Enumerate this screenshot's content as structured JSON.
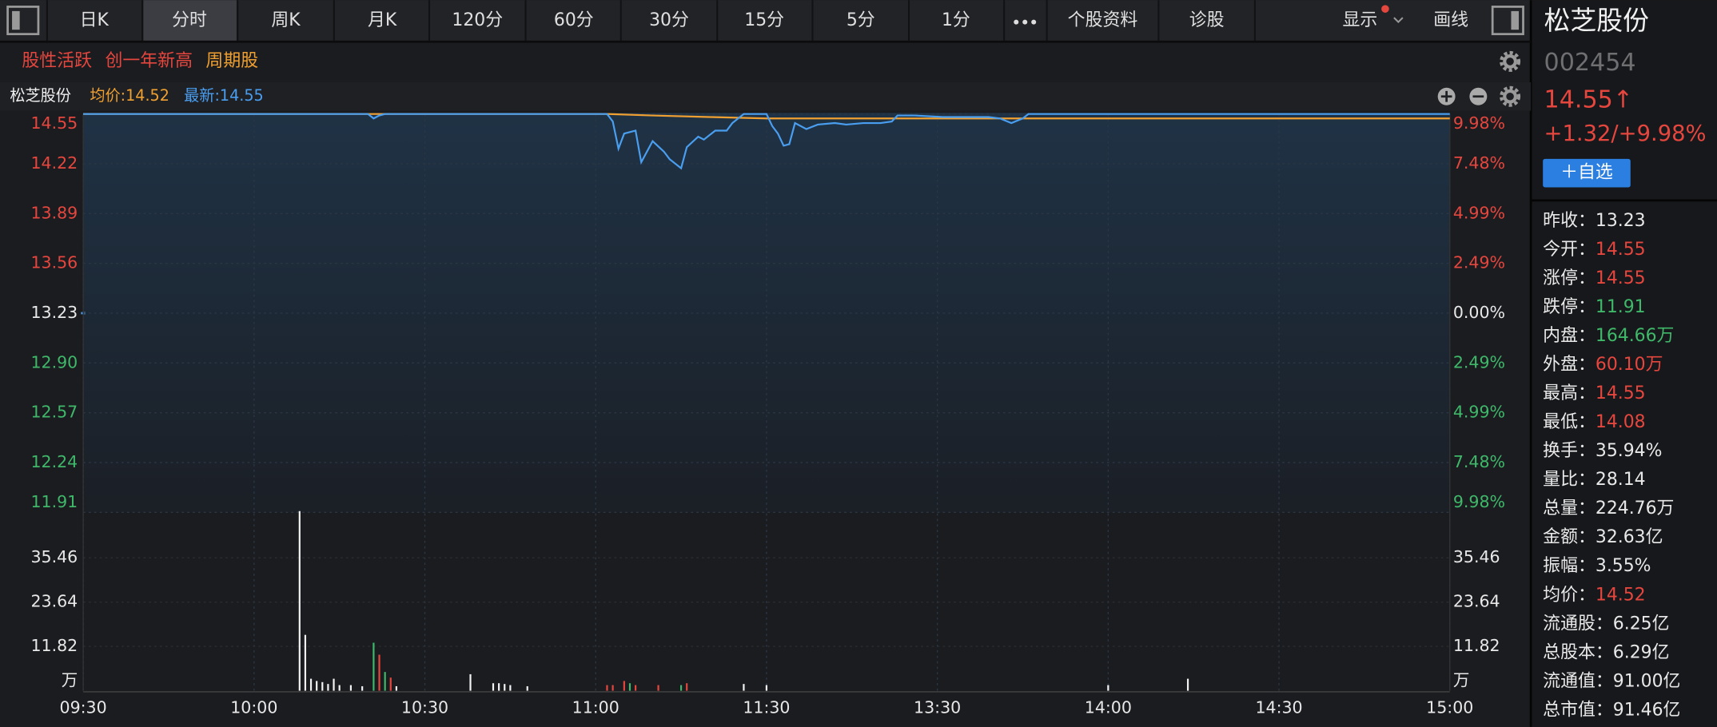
{
  "toolbar": {
    "tabs": [
      "日K",
      "分时",
      "周K",
      "月K",
      "120分",
      "60分",
      "30分",
      "15分",
      "5分",
      "1分",
      "个股资料",
      "诊股"
    ],
    "active": 1,
    "display": "显示",
    "draw": "画线"
  },
  "tags": [
    {
      "text": "股性活跃",
      "color": "#e5463e"
    },
    {
      "text": "创一年新高",
      "color": "#e5463e"
    },
    {
      "text": "周期股",
      "color": "#f0a030"
    }
  ],
  "chart": {
    "name": "松芝股份",
    "avg_label": "均价:14.52",
    "latest_label": "最新:14.55",
    "base": 13.23,
    "xlim": [
      0,
      240
    ],
    "xticks": [
      {
        "value": 0,
        "label": "09:30"
      },
      {
        "value": 30,
        "label": "10:00"
      },
      {
        "value": 60,
        "label": "10:30"
      },
      {
        "value": 90,
        "label": "11:00"
      },
      {
        "value": 120,
        "label": "11:30"
      },
      {
        "value": 150,
        "label": "13:30"
      },
      {
        "value": 180,
        "label": "14:00"
      },
      {
        "value": 210,
        "label": "14:30"
      },
      {
        "value": 240,
        "label": "15:00"
      }
    ],
    "ylim": [
      11.91,
      14.55
    ],
    "yticks": [
      {
        "value": 14.55,
        "label": "14.55"
      },
      {
        "value": 14.22,
        "label": "14.22"
      },
      {
        "value": 13.89,
        "label": "13.89"
      },
      {
        "value": 13.56,
        "label": "13.56"
      },
      {
        "value": 13.23,
        "label": "13.23"
      },
      {
        "value": 12.9,
        "label": "12.90"
      },
      {
        "value": 12.57,
        "label": "12.57"
      },
      {
        "value": 12.24,
        "label": "12.24"
      },
      {
        "value": 11.91,
        "label": "11.91"
      }
    ],
    "pct_ticks": [
      {
        "value": 14.55,
        "label": "9.98%"
      },
      {
        "value": 14.22,
        "label": "7.48%"
      },
      {
        "value": 13.89,
        "label": "4.99%"
      },
      {
        "value": 13.56,
        "label": "2.49%"
      },
      {
        "value": 13.23,
        "label": "0.00%"
      },
      {
        "value": 12.9,
        "label": "2.49%"
      },
      {
        "value": 12.57,
        "label": "4.99%"
      },
      {
        "value": 12.24,
        "label": "7.48%"
      },
      {
        "value": 11.91,
        "label": "9.98%"
      }
    ],
    "price": {
      "color": "#4a9ef0",
      "x": [
        0,
        50,
        51,
        52,
        53,
        92,
        93,
        94,
        95,
        97,
        98,
        100,
        102,
        103,
        105,
        106,
        108,
        109,
        111,
        113,
        114,
        116,
        120,
        121,
        122,
        123,
        124,
        125,
        127,
        129,
        132,
        134,
        137,
        140,
        142,
        143,
        146,
        151,
        159,
        161,
        163,
        165,
        166,
        240
      ],
      "values": [
        14.55,
        14.55,
        14.52,
        14.54,
        14.55,
        14.55,
        14.5,
        14.32,
        14.42,
        14.44,
        14.23,
        14.37,
        14.3,
        14.25,
        14.19,
        14.33,
        14.4,
        14.38,
        14.44,
        14.44,
        14.49,
        14.55,
        14.55,
        14.47,
        14.42,
        14.34,
        14.35,
        14.49,
        14.45,
        14.48,
        14.49,
        14.48,
        14.49,
        14.49,
        14.5,
        14.54,
        14.54,
        14.53,
        14.53,
        14.52,
        14.49,
        14.52,
        14.55,
        14.55
      ]
    },
    "avg": {
      "color": "#f0a030",
      "x": [
        0,
        92,
        100,
        110,
        120,
        240
      ],
      "values": [
        14.55,
        14.55,
        14.54,
        14.53,
        14.52,
        14.52
      ]
    },
    "vol_ylim": [
      0,
      47.28
    ],
    "vol_yticks": [
      11.82,
      23.64,
      35.46
    ],
    "vol_unit": "万",
    "volume": {
      "x": [
        38,
        39,
        40,
        41,
        42,
        43,
        44,
        45,
        47,
        49,
        51,
        52,
        53,
        54,
        55,
        68,
        72,
        73,
        74,
        75,
        78,
        92,
        93,
        95,
        96,
        97,
        101,
        105,
        106,
        116,
        120,
        180,
        194
      ],
      "values": [
        47.9,
        14.9,
        3.2,
        2.6,
        2.3,
        1.8,
        3.2,
        1.5,
        1.5,
        1.2,
        12.8,
        9.6,
        5,
        3.5,
        1.2,
        4.4,
        2,
        2,
        1.8,
        1.5,
        1.2,
        1.5,
        1.5,
        2.6,
        2,
        1.5,
        1.5,
        1.5,
        2,
        1.8,
        1.5,
        1.5,
        3.2
      ],
      "colors": [
        "#f2f2f2",
        "#f2f2f2",
        "#f2f2f2",
        "#f2f2f2",
        "#f2f2f2",
        "#f2f2f2",
        "#f2f2f2",
        "#f2f2f2",
        "#f2f2f2",
        "#f2f2f2",
        "#3fb86a",
        "#e5463e",
        "#3fb86a",
        "#e5463e",
        "#f2f2f2",
        "#f2f2f2",
        "#f2f2f2",
        "#f2f2f2",
        "#f2f2f2",
        "#f2f2f2",
        "#f2f2f2",
        "#e5463e",
        "#e5463e",
        "#e5463e",
        "#3fb86a",
        "#e5463e",
        "#e5463e",
        "#3fb86a",
        "#e5463e",
        "#f2f2f2",
        "#f2f2f2",
        "#f2f2f2",
        "#f2f2f2"
      ]
    }
  },
  "quote": {
    "name": "松芝股份",
    "code": "002454",
    "price": "14.55↑",
    "change": "+1.32/+9.98%",
    "button": "＋自选"
  },
  "stats": [
    {
      "label": "昨收：",
      "value": "13.23",
      "color": "#e8e8e8"
    },
    {
      "label": "今开：",
      "value": "14.55",
      "color": "#e5463e"
    },
    {
      "label": "涨停：",
      "value": "14.55",
      "color": "#e5463e"
    },
    {
      "label": "跌停：",
      "value": "11.91",
      "color": "#3fb86a"
    },
    {
      "label": "内盘：",
      "value": "164.66万",
      "color": "#3fb86a"
    },
    {
      "label": "外盘：",
      "value": "60.10万",
      "color": "#e5463e"
    },
    {
      "label": "最高：",
      "value": "14.55",
      "color": "#e5463e"
    },
    {
      "label": "最低：",
      "value": "14.08",
      "color": "#e5463e"
    },
    {
      "label": "换手：",
      "value": "35.94%",
      "color": "#e8e8e8"
    },
    {
      "label": "量比：",
      "value": "28.14",
      "color": "#e8e8e8"
    },
    {
      "label": "总量：",
      "value": "224.76万",
      "color": "#e8e8e8"
    },
    {
      "label": "金额：",
      "value": "32.63亿",
      "color": "#e8e8e8"
    },
    {
      "label": "振幅：",
      "value": "3.55%",
      "color": "#e8e8e8"
    },
    {
      "label": "均价：",
      "value": "14.52",
      "color": "#e5463e"
    },
    {
      "label": "流通股：",
      "value": "6.25亿",
      "color": "#e8e8e8"
    },
    {
      "label": "总股本：",
      "value": "6.29亿",
      "color": "#e8e8e8"
    },
    {
      "label": "流通值：",
      "value": "91.00亿",
      "color": "#e8e8e8"
    },
    {
      "label": "总市值：",
      "value": "91.46亿",
      "color": "#e8e8e8"
    }
  ]
}
